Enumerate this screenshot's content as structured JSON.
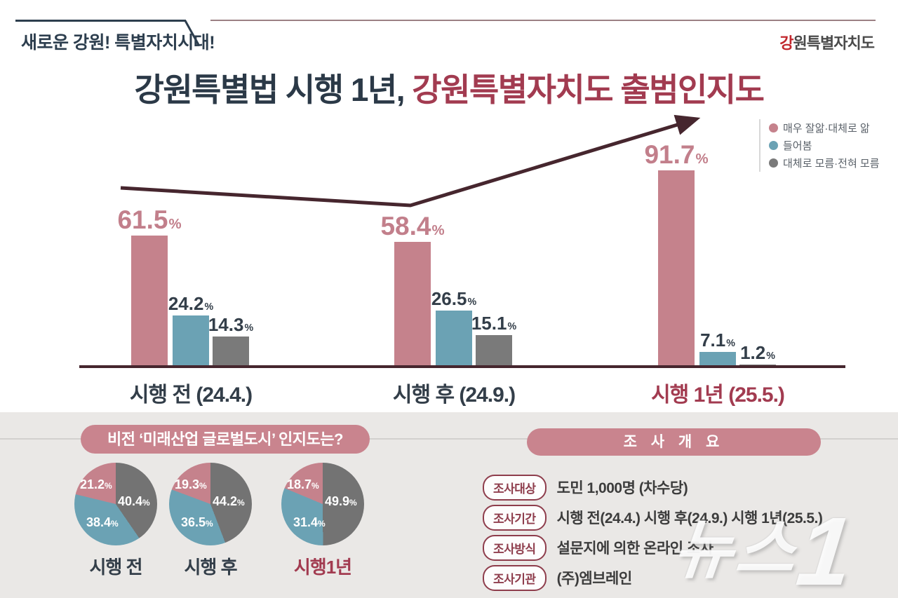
{
  "header": {
    "slogan": "새로운 강원! 특별자치시대!",
    "logo_accent": "강",
    "logo_rest": "원특별자치도",
    "title_dark": "강원특별법 시행 1년,",
    "title_red": " 강원특별자치도 출범인지도"
  },
  "chart_data": [
    {
      "type": "bar",
      "title": "강원특별법 시행 1년, 강원특별자치도 출범인지도",
      "categories": [
        "시행 전 (24.4.)",
        "시행 후 (24.9.)",
        "시행 1년 (25.5.)"
      ],
      "series": [
        {
          "name": "매우 잘앎·대체로 앎",
          "color": "#c5828c",
          "values": [
            61.5,
            58.4,
            91.7
          ]
        },
        {
          "name": "들어봄",
          "color": "#6ba2b4",
          "values": [
            24.2,
            26.5,
            7.1
          ]
        },
        {
          "name": "대체로 모름·전혀 모름",
          "color": "#7a7a7a",
          "values": [
            14.3,
            15.1,
            1.2
          ]
        }
      ],
      "unit": "%",
      "ylim": [
        0,
        100
      ],
      "grid": false,
      "legend_position": "top-right",
      "trend_arrow": true
    },
    {
      "type": "pie",
      "title": "비전 ‘미래산업 글로벌도시’ 인지도는?",
      "unit": "%",
      "pies": [
        {
          "label": "시행 전",
          "slices": [
            {
              "name": "대체로 모름·전혀 모름",
              "value": 40.4,
              "color": "#737373"
            },
            {
              "name": "들어봄",
              "value": 38.4,
              "color": "#6ba2b4"
            },
            {
              "name": "매우 잘앎·대체로 앎",
              "value": 21.2,
              "color": "#c5828c"
            }
          ]
        },
        {
          "label": "시행 후",
          "slices": [
            {
              "name": "대체로 모름·전혀 모름",
              "value": 44.2,
              "color": "#737373"
            },
            {
              "name": "들어봄",
              "value": 36.5,
              "color": "#6ba2b4"
            },
            {
              "name": "매우 잘앎·대체로 앎",
              "value": 19.3,
              "color": "#c5828c"
            }
          ]
        },
        {
          "label": "시행1년",
          "slices": [
            {
              "name": "대체로 모름·전혀 모름",
              "value": 49.9,
              "color": "#737373"
            },
            {
              "name": "들어봄",
              "value": 31.4,
              "color": "#6ba2b4"
            },
            {
              "name": "매우 잘앎·대체로 앎",
              "value": 18.7,
              "color": "#c5828c"
            }
          ]
        }
      ]
    }
  ],
  "survey": {
    "title": "조 사 개 요",
    "rows": [
      {
        "label": "조사대상",
        "value": "도민 1,000명 (차수당)"
      },
      {
        "label": "조사기간",
        "value": "시행 전(24.4.) 시행 후(24.9.) 시행 1년(25.5.)"
      },
      {
        "label": "조사방식",
        "value": "설문지에 의한 온라인 조사"
      },
      {
        "label": "조사기관",
        "value": "(주)엠브레인"
      }
    ]
  },
  "watermark": {
    "text": "뉴스",
    "digit": "1"
  },
  "colors": {
    "rose": "#c5828c",
    "blue": "#6ba2b4",
    "gray": "#7a7a7a",
    "navy": "#2b3947",
    "maroon": "#a23b50",
    "arrow": "#46262e",
    "bottom_bg": "#eae8e6"
  }
}
